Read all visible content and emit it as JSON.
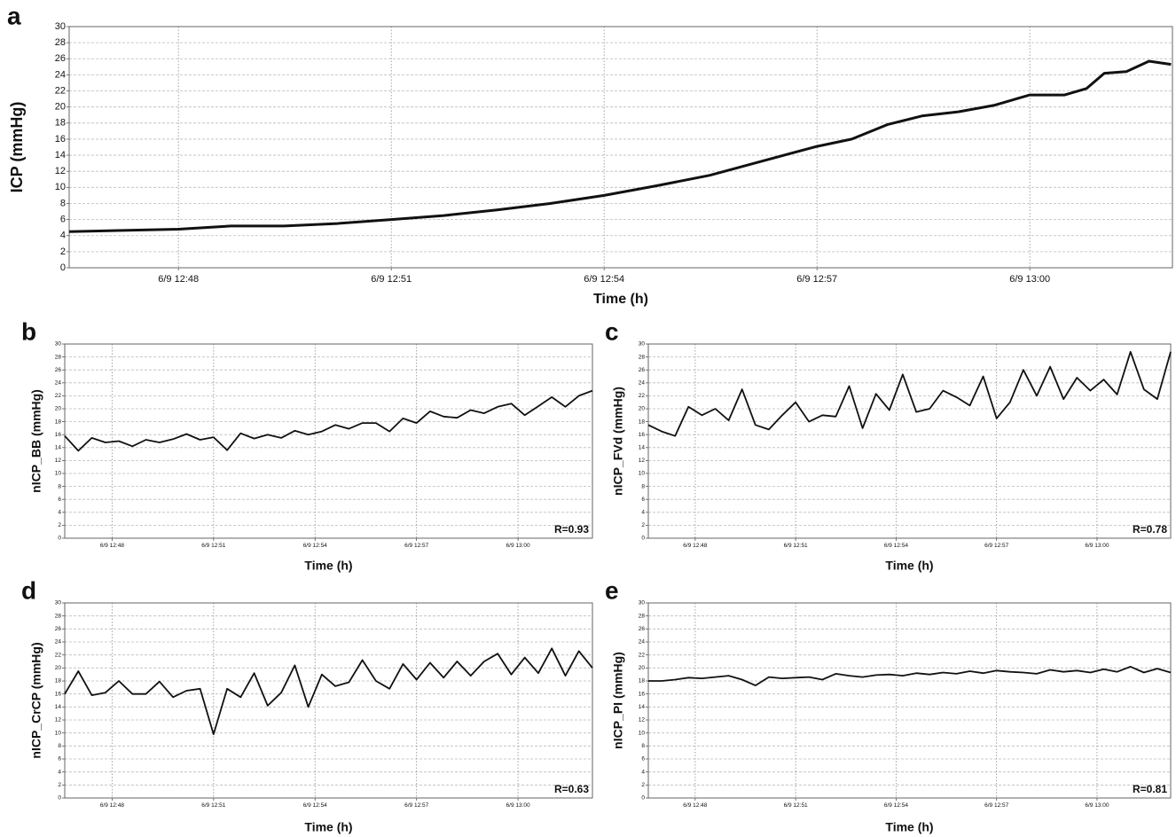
{
  "chart_data": [
    {
      "type": "line",
      "panel": "a",
      "ylabel": "ICP (mmHg)",
      "xlabel": "Time (h)",
      "color": "#111111",
      "grid": true,
      "x": [
        46.46,
        48.0,
        48.74,
        49.49,
        50.24,
        51.0,
        51.74,
        52.49,
        53.24,
        54.0,
        54.74,
        55.49,
        56.24,
        57.0,
        57.49,
        57.99,
        58.49,
        58.99,
        59.49,
        60.0,
        60.49,
        60.8,
        61.05,
        61.36,
        61.68,
        61.99
      ],
      "values": [
        4.5,
        4.8,
        5.2,
        5.2,
        5.5,
        6.0,
        6.5,
        7.2,
        8.0,
        9.0,
        10.2,
        11.5,
        13.3,
        15.1,
        16.0,
        17.8,
        18.9,
        19.4,
        20.2,
        21.5,
        21.5,
        22.3,
        24.2,
        24.4,
        25.7,
        25.3
      ],
      "xlim": [
        46.46,
        62.01
      ],
      "xticks": [
        {
          "value": 48,
          "label": "6/9 12:48"
        },
        {
          "value": 51,
          "label": "6/9 12:51"
        },
        {
          "value": 54,
          "label": "6/9 12:54"
        },
        {
          "value": 57,
          "label": "6/9 12:57"
        },
        {
          "value": 60,
          "label": "6/9 13:00"
        }
      ],
      "ylim": [
        0,
        30
      ],
      "yticks": [
        0,
        2,
        4,
        6,
        8,
        10,
        12,
        14,
        16,
        18,
        20,
        22,
        24,
        26,
        28,
        30
      ]
    },
    {
      "type": "line",
      "panel": "b",
      "ylabel": "nICP_BB (mmHg)",
      "xlabel": "Time (h)",
      "annotation": "R=0.93",
      "color": "#111111",
      "grid": true,
      "x": [
        46.6,
        47.0,
        47.4,
        47.8,
        48.2,
        48.6,
        49.0,
        49.4,
        49.8,
        50.2,
        50.6,
        51.0,
        51.4,
        51.8,
        52.2,
        52.6,
        53.0,
        53.4,
        53.8,
        54.2,
        54.6,
        55.0,
        55.4,
        55.8,
        56.2,
        56.6,
        57.0,
        57.4,
        57.8,
        58.2,
        58.6,
        59.0,
        59.4,
        59.8,
        60.2,
        60.6,
        61.0,
        61.4,
        61.8,
        62.2
      ],
      "values": [
        15.8,
        13.5,
        15.5,
        14.8,
        15.0,
        14.2,
        15.2,
        14.8,
        15.3,
        16.1,
        15.2,
        15.6,
        13.6,
        16.2,
        15.4,
        16.0,
        15.5,
        16.6,
        16.0,
        16.5,
        17.5,
        16.9,
        17.8,
        17.8,
        16.5,
        18.5,
        17.8,
        19.6,
        18.8,
        18.6,
        19.8,
        19.3,
        20.3,
        20.8,
        19.0,
        20.4,
        21.8,
        20.3,
        22.0,
        22.8
      ],
      "xlim": [
        46.6,
        62.2
      ],
      "xticks": [
        {
          "value": 48,
          "label": "6/9 12:48"
        },
        {
          "value": 51,
          "label": "6/9 12:51"
        },
        {
          "value": 54,
          "label": "6/9 12:54"
        },
        {
          "value": 57,
          "label": "6/9 12:57"
        },
        {
          "value": 60,
          "label": "6/9 13:00"
        }
      ],
      "ylim": [
        0,
        30
      ],
      "yticks": [
        0,
        2,
        4,
        6,
        8,
        10,
        12,
        14,
        16,
        18,
        20,
        22,
        24,
        26,
        28,
        30
      ]
    },
    {
      "type": "line",
      "panel": "c",
      "ylabel": "nICP_FVd (mmHg)",
      "xlabel": "Time (h)",
      "annotation": "R=0.78",
      "color": "#111111",
      "grid": true,
      "x": [
        46.6,
        47.0,
        47.4,
        47.8,
        48.2,
        48.6,
        49.0,
        49.4,
        49.8,
        50.2,
        50.6,
        51.0,
        51.4,
        51.8,
        52.2,
        52.6,
        53.0,
        53.4,
        53.8,
        54.2,
        54.6,
        55.0,
        55.4,
        55.8,
        56.2,
        56.6,
        57.0,
        57.4,
        57.8,
        58.2,
        58.6,
        59.0,
        59.4,
        59.8,
        60.2,
        60.6,
        61.0,
        61.4,
        61.8,
        62.2
      ],
      "values": [
        17.5,
        16.5,
        15.8,
        20.3,
        19.0,
        20.0,
        18.2,
        23.0,
        17.5,
        16.8,
        19.0,
        21.0,
        18.0,
        19.0,
        18.8,
        23.5,
        17.0,
        22.3,
        19.8,
        25.3,
        19.5,
        20.0,
        22.8,
        21.8,
        20.5,
        25.0,
        18.5,
        21.0,
        26.0,
        22.0,
        26.5,
        21.5,
        24.8,
        22.8,
        24.5,
        22.2,
        28.8,
        23.0,
        21.5,
        28.8
      ],
      "xlim": [
        46.6,
        62.2
      ],
      "xticks": [
        {
          "value": 48,
          "label": "6/9 12:48"
        },
        {
          "value": 51,
          "label": "6/9 12:51"
        },
        {
          "value": 54,
          "label": "6/9 12:54"
        },
        {
          "value": 57,
          "label": "6/9 12:57"
        },
        {
          "value": 60,
          "label": "6/9 13:00"
        }
      ],
      "ylim": [
        0,
        30
      ],
      "yticks": [
        0,
        2,
        4,
        6,
        8,
        10,
        12,
        14,
        16,
        18,
        20,
        22,
        24,
        26,
        28,
        30
      ]
    },
    {
      "type": "line",
      "panel": "d",
      "ylabel": "nICP_CrCP (mmHg)",
      "xlabel": "Time (h)",
      "annotation": "R=0.63",
      "color": "#111111",
      "grid": true,
      "x": [
        46.6,
        47.0,
        47.4,
        47.8,
        48.2,
        48.6,
        49.0,
        49.4,
        49.8,
        50.2,
        50.6,
        51.0,
        51.4,
        51.8,
        52.2,
        52.6,
        53.0,
        53.4,
        53.8,
        54.2,
        54.6,
        55.0,
        55.4,
        55.8,
        56.2,
        56.6,
        57.0,
        57.4,
        57.8,
        58.2,
        58.6,
        59.0,
        59.4,
        59.8,
        60.2,
        60.6,
        61.0,
        61.4,
        61.8,
        62.2
      ],
      "values": [
        16,
        19.5,
        15.8,
        16.2,
        18.0,
        16.0,
        16.0,
        17.9,
        15.5,
        16.5,
        16.8,
        9.8,
        16.8,
        15.5,
        19.2,
        14.2,
        16.2,
        20.4,
        14.0,
        19.0,
        17.2,
        17.8,
        21.2,
        18.0,
        16.8,
        20.6,
        18.2,
        20.8,
        18.5,
        21.0,
        18.8,
        21.0,
        22.2,
        19.0,
        21.6,
        19.2,
        23.0,
        18.8,
        22.6,
        20.0
      ],
      "xlim": [
        46.6,
        62.2
      ],
      "xticks": [
        {
          "value": 48,
          "label": "6/9 12:48"
        },
        {
          "value": 51,
          "label": "6/9 12:51"
        },
        {
          "value": 54,
          "label": "6/9 12:54"
        },
        {
          "value": 57,
          "label": "6/9 12:57"
        },
        {
          "value": 60,
          "label": "6/9 13:00"
        }
      ],
      "ylim": [
        0,
        30
      ],
      "yticks": [
        0,
        2,
        4,
        6,
        8,
        10,
        12,
        14,
        16,
        18,
        20,
        22,
        24,
        26,
        28,
        30
      ]
    },
    {
      "type": "line",
      "panel": "e",
      "ylabel": "nICP_PI (mmHg)",
      "xlabel": "Time (h)",
      "annotation": "R=0.81",
      "color": "#111111",
      "grid": true,
      "x": [
        46.6,
        47.0,
        47.4,
        47.8,
        48.2,
        48.6,
        49.0,
        49.4,
        49.8,
        50.2,
        50.6,
        51.0,
        51.4,
        51.8,
        52.2,
        52.6,
        53.0,
        53.4,
        53.8,
        54.2,
        54.6,
        55.0,
        55.4,
        55.8,
        56.2,
        56.6,
        57.0,
        57.4,
        57.8,
        58.2,
        58.6,
        59.0,
        59.4,
        59.8,
        60.2,
        60.6,
        61.0,
        61.4,
        61.8,
        62.2
      ],
      "values": [
        18.0,
        18.0,
        18.2,
        18.5,
        18.4,
        18.6,
        18.8,
        18.2,
        17.3,
        18.6,
        18.4,
        18.5,
        18.6,
        18.2,
        19.1,
        18.8,
        18.6,
        18.9,
        19.0,
        18.8,
        19.2,
        19.0,
        19.3,
        19.1,
        19.5,
        19.2,
        19.6,
        19.4,
        19.3,
        19.1,
        19.7,
        19.4,
        19.6,
        19.3,
        19.8,
        19.4,
        20.2,
        19.3,
        19.9,
        19.3
      ],
      "xlim": [
        46.6,
        62.2
      ],
      "xticks": [
        {
          "value": 48,
          "label": "6/9 12:48"
        },
        {
          "value": 51,
          "label": "6/9 12:51"
        },
        {
          "value": 54,
          "label": "6/9 12:54"
        },
        {
          "value": 57,
          "label": "6/9 12:57"
        },
        {
          "value": 60,
          "label": "6/9 13:00"
        }
      ],
      "ylim": [
        0,
        30
      ],
      "yticks": [
        0,
        2,
        4,
        6,
        8,
        10,
        12,
        14,
        16,
        18,
        20,
        22,
        24,
        26,
        28,
        30
      ]
    }
  ]
}
